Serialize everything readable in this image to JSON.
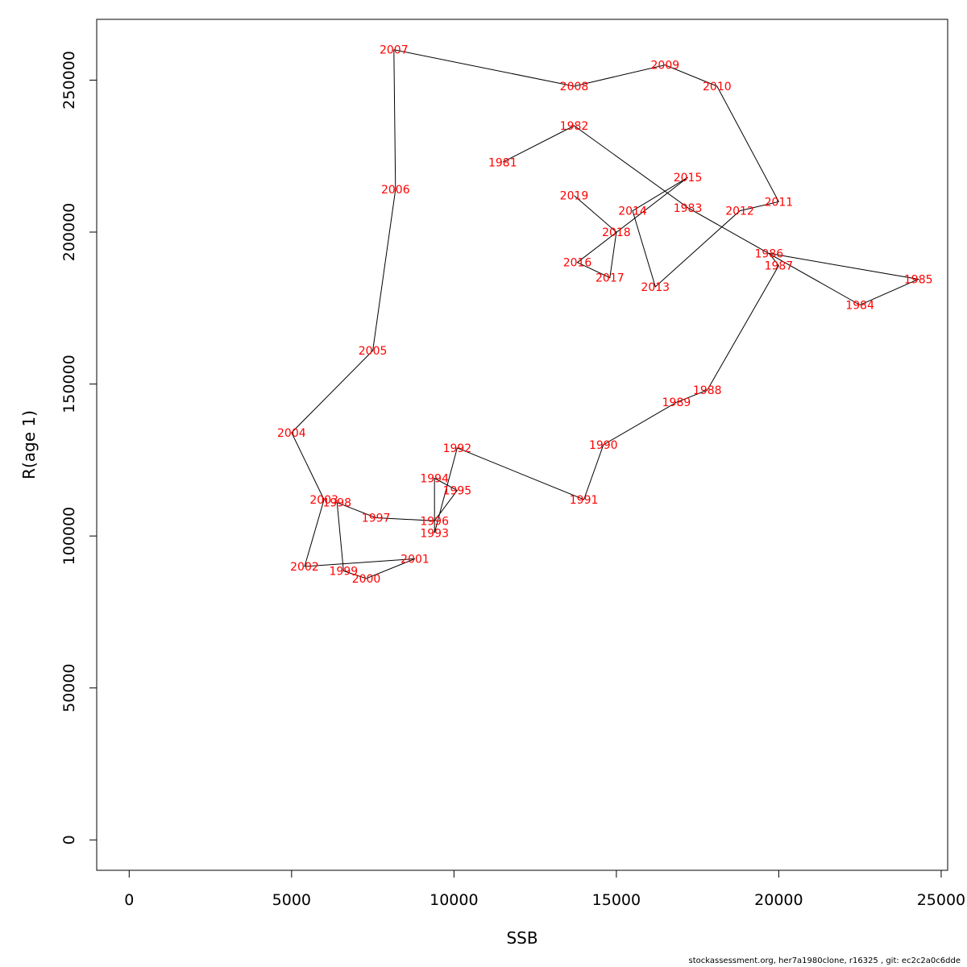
{
  "chart_data": {
    "type": "line",
    "title": "",
    "xlabel": "SSB",
    "ylabel": "R(age 1)",
    "xlim": [
      -1000,
      25200
    ],
    "ylim": [
      -10000,
      270000
    ],
    "xticks": [
      0,
      5000,
      10000,
      15000,
      20000,
      25000
    ],
    "yticks": [
      0,
      50000,
      100000,
      150000,
      200000,
      250000
    ],
    "line_color": "#000000",
    "label_color": "#ff0000",
    "points": [
      {
        "label": "1981",
        "x": 11500,
        "y": 223000
      },
      {
        "label": "1982",
        "x": 13700,
        "y": 235000
      },
      {
        "label": "1983",
        "x": 17200,
        "y": 208000
      },
      {
        "label": "1984",
        "x": 22500,
        "y": 176000
      },
      {
        "label": "1985",
        "x": 24300,
        "y": 184500
      },
      {
        "label": "1986",
        "x": 19700,
        "y": 193000
      },
      {
        "label": "1987",
        "x": 20000,
        "y": 189000
      },
      {
        "label": "1988",
        "x": 17800,
        "y": 148000
      },
      {
        "label": "1989",
        "x": 16850,
        "y": 144000
      },
      {
        "label": "1990",
        "x": 14600,
        "y": 130000
      },
      {
        "label": "1991",
        "x": 14000,
        "y": 112000
      },
      {
        "label": "1992",
        "x": 10100,
        "y": 129000
      },
      {
        "label": "1993",
        "x": 9400,
        "y": 101000
      },
      {
        "label": "1994",
        "x": 9400,
        "y": 119000
      },
      {
        "label": "1995",
        "x": 10100,
        "y": 115000
      },
      {
        "label": "1996",
        "x": 9400,
        "y": 105000
      },
      {
        "label": "1997",
        "x": 7600,
        "y": 106000
      },
      {
        "label": "1998",
        "x": 6400,
        "y": 111000
      },
      {
        "label": "1999",
        "x": 6600,
        "y": 88500
      },
      {
        "label": "2000",
        "x": 7300,
        "y": 86000
      },
      {
        "label": "2001",
        "x": 8800,
        "y": 92500
      },
      {
        "label": "2002",
        "x": 5400,
        "y": 90000
      },
      {
        "label": "2003",
        "x": 6000,
        "y": 112000
      },
      {
        "label": "2004",
        "x": 5000,
        "y": 134000
      },
      {
        "label": "2005",
        "x": 7500,
        "y": 161000
      },
      {
        "label": "2006",
        "x": 8200,
        "y": 214000
      },
      {
        "label": "2007",
        "x": 8150,
        "y": 260000
      },
      {
        "label": "2008",
        "x": 13700,
        "y": 248000
      },
      {
        "label": "2009",
        "x": 16500,
        "y": 255000
      },
      {
        "label": "2010",
        "x": 18100,
        "y": 248000
      },
      {
        "label": "2011",
        "x": 20000,
        "y": 210000
      },
      {
        "label": "2012",
        "x": 18800,
        "y": 207000
      },
      {
        "label": "2013",
        "x": 16200,
        "y": 182000
      },
      {
        "label": "2014",
        "x": 15500,
        "y": 207000
      },
      {
        "label": "2015",
        "x": 17200,
        "y": 218000
      },
      {
        "label": "2016",
        "x": 13800,
        "y": 190000
      },
      {
        "label": "2017",
        "x": 14800,
        "y": 185000
      },
      {
        "label": "2018",
        "x": 15000,
        "y": 200000
      },
      {
        "label": "2019",
        "x": 13700,
        "y": 212000
      }
    ]
  },
  "footer": {
    "credit": "stockassessment.org, her7a1980clone, r16325 , git: ec2c2a0c6dde"
  }
}
